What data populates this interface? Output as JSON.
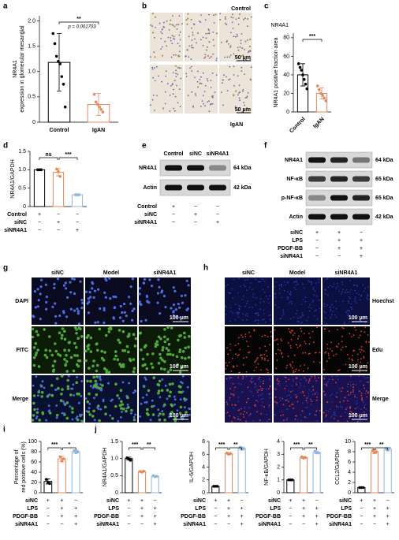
{
  "letters": [
    "a",
    "b",
    "c",
    "d",
    "e",
    "f",
    "g",
    "h",
    "i",
    "j"
  ],
  "chart_data": [
    {
      "type": "bar",
      "ylabel": [
        "NR4A1",
        "expression in glomerular mesangial"
      ],
      "categories": [
        "Control",
        "IgAN"
      ],
      "values": [
        1.18,
        0.35
      ],
      "errors": [
        0.57,
        0.22
      ],
      "points": [
        [
          1.75,
          1.55,
          1.3,
          1.2,
          1.15,
          0.9,
          0.75,
          0.3
        ],
        [
          0.55,
          0.4,
          0.35,
          0.3,
          0.25,
          0.2
        ]
      ],
      "colors": [
        "#000000",
        "#e8875a"
      ],
      "ylim": [
        0,
        2.1
      ],
      "yticks": [
        0,
        0.5,
        {
          "value": 1,
          "label": "1.0"
        },
        1.5,
        {
          "value": 2,
          "label": "2.0"
        }
      ],
      "annotations": [
        "**",
        "p = 0.001703"
      ]
    },
    {
      "type": "bar",
      "subtitle": "NR4A1",
      "ylabel": [
        "NR4A1 positive fraction area"
      ],
      "categories": [
        "Control",
        "IgAN"
      ],
      "values": [
        40,
        20
      ],
      "errors": [
        12,
        6
      ],
      "points": [
        [
          52,
          48,
          45,
          40,
          35,
          30,
          25
        ],
        [
          28,
          24,
          20,
          18,
          15,
          12
        ]
      ],
      "colors": [
        "#000000",
        "#e8875a"
      ],
      "ylim": [
        0,
        85
      ],
      "yticks": [
        0,
        20,
        40,
        60,
        80
      ],
      "annotations": [
        "***"
      ]
    },
    {
      "type": "bar",
      "ylabel": [
        "NR4A1/GAPDH"
      ],
      "values": [
        1.0,
        0.93,
        0.32
      ],
      "errors": [
        0.01,
        0.1,
        0.01
      ],
      "points": [
        [
          1,
          1,
          1
        ],
        [
          1.02,
          0.95,
          0.82
        ],
        [
          0.32,
          0.32,
          0.32
        ]
      ],
      "colors": [
        "#000000",
        "#e8875a",
        "#8fb5dc"
      ],
      "ylim": [
        0,
        1.5
      ],
      "yticks": [
        0,
        0.5,
        {
          "value": 1,
          "label": "1.0"
        },
        1.5
      ],
      "annotations": [
        "ns",
        "***"
      ],
      "conditions": {
        "labels": [
          "Control",
          "siNC",
          "siNR4A1"
        ],
        "signs": [
          [
            "+",
            "−",
            "−"
          ],
          [
            "−",
            "+",
            "−"
          ],
          [
            "−",
            "−",
            "+"
          ]
        ]
      }
    },
    {
      "type": "bar",
      "ylabel": [
        "Percentage of",
        "red positive cells (%)"
      ],
      "values": [
        22,
        66,
        80
      ],
      "errors": [
        5,
        5,
        3
      ],
      "points": [
        [
          26,
          20,
          18
        ],
        [
          70,
          62,
          66
        ],
        [
          82,
          78,
          80
        ]
      ],
      "colors": [
        "#000000",
        "#e8875a",
        "#8fb5dc"
      ],
      "ylim": [
        0,
        100
      ],
      "yticks": [
        0,
        20,
        40,
        60,
        80,
        100
      ],
      "annotations": [
        "***",
        "*"
      ],
      "conditions": {
        "labels": [
          "siNC",
          "LPS",
          "PDGF-BB",
          "siNR4A1"
        ],
        "signs": [
          [
            "+",
            "+",
            "−"
          ],
          [
            "−",
            "+",
            "+"
          ],
          [
            "−",
            "+",
            "+"
          ],
          [
            "−",
            "−",
            "+"
          ]
        ]
      }
    },
    {
      "type": "bar",
      "ylabel": [
        "NR4A1/GAPDH"
      ],
      "values": [
        1.0,
        0.62,
        0.48
      ],
      "errors": [
        0.04,
        0.02,
        0.02
      ],
      "points": [
        [
          1.02,
          0.98,
          0.95
        ],
        [
          0.62,
          0.6,
          0.63
        ],
        [
          0.5,
          0.47,
          0.48
        ]
      ],
      "colors": [
        "#000000",
        "#e8875a",
        "#8fb5dc"
      ],
      "ylim": [
        0,
        1.5
      ],
      "yticks": [
        0,
        0.5,
        {
          "value": 1,
          "label": "1.0"
        },
        1.5
      ],
      "annotations": [
        "***",
        "**"
      ],
      "conditions": {
        "labels": [
          "siNC",
          "LPS",
          "PDGF-BB",
          "siNR4A1"
        ],
        "signs": [
          [
            "+",
            "+",
            "−"
          ],
          [
            "−",
            "+",
            "+"
          ],
          [
            "−",
            "+",
            "+"
          ],
          [
            "−",
            "−",
            "+"
          ]
        ]
      }
    },
    {
      "type": "bar",
      "ylabel": [
        "IL-6/GAPDH"
      ],
      "values": [
        1.0,
        6.1,
        6.9
      ],
      "errors": [
        0.05,
        0.15,
        0.25
      ],
      "points": [
        [
          1,
          1,
          1
        ],
        [
          6.2,
          6.0,
          6.1
        ],
        [
          7.1,
          6.8,
          6.9
        ]
      ],
      "colors": [
        "#000000",
        "#e8875a",
        "#8fb5dc"
      ],
      "ylim": [
        0,
        8
      ],
      "yticks": [
        0,
        2,
        4,
        6,
        8
      ],
      "annotations": [
        "***",
        "**"
      ],
      "conditions": {
        "labels": [
          "siNC",
          "LPS",
          "PDGF-BB",
          "siNR4A1"
        ],
        "signs": [
          [
            "+",
            "+",
            "−"
          ],
          [
            "−",
            "+",
            "+"
          ],
          [
            "−",
            "+",
            "+"
          ],
          [
            "−",
            "−",
            "+"
          ]
        ]
      }
    },
    {
      "type": "bar",
      "ylabel": [
        "NF-κB/GAPDH"
      ],
      "values": [
        1.0,
        2.75,
        3.15
      ],
      "errors": [
        0.03,
        0.07,
        0.1
      ],
      "points": [
        [
          1,
          1,
          1
        ],
        [
          2.8,
          2.7,
          2.75
        ],
        [
          3.25,
          3.1,
          3.1
        ]
      ],
      "colors": [
        "#000000",
        "#e8875a",
        "#8fb5dc"
      ],
      "ylim": [
        0,
        4
      ],
      "yticks": [
        0,
        1,
        2,
        3,
        4
      ],
      "annotations": [
        "***",
        "**"
      ],
      "conditions": {
        "labels": [
          "siNC",
          "LPS",
          "PDGF-BB",
          "siNR4A1"
        ],
        "signs": [
          [
            "+",
            "+",
            "−"
          ],
          [
            "−",
            "+",
            "+"
          ],
          [
            "−",
            "+",
            "+"
          ],
          [
            "−",
            "−",
            "+"
          ]
        ]
      }
    },
    {
      "type": "bar",
      "ylabel": [
        "CCL2/GAPDH"
      ],
      "values": [
        1.0,
        8.0,
        8.5
      ],
      "errors": [
        0.05,
        0.35,
        0.3
      ],
      "points": [
        [
          1,
          1,
          1
        ],
        [
          8.3,
          7.8,
          8.0
        ],
        [
          8.6,
          8.3,
          8.7
        ]
      ],
      "colors": [
        "#000000",
        "#e8875a",
        "#8fb5dc"
      ],
      "ylim": [
        0,
        10
      ],
      "yticks": [
        0,
        2,
        4,
        6,
        8,
        10
      ],
      "annotations": [
        "***",
        "**"
      ],
      "conditions": {
        "labels": [
          "siNC",
          "LPS",
          "PDGF-BB",
          "siNR4A1"
        ],
        "signs": [
          [
            "+",
            "+",
            "−"
          ],
          [
            "−",
            "+",
            "+"
          ],
          [
            "−",
            "+",
            "+"
          ],
          [
            "−",
            "−",
            "+"
          ]
        ]
      }
    }
  ],
  "histology_b": {
    "top": "Control",
    "bottom": "IgAN",
    "scale": [
      "50 μm",
      "50 μm"
    ]
  },
  "blot_e": {
    "columns": [
      "Control",
      "siNC",
      "siNR4A1"
    ],
    "rows": [
      {
        "name": "NR4A1",
        "size": "64 kDa"
      },
      {
        "name": "Actin",
        "size": "42 kDa"
      }
    ],
    "conditions": {
      "labels": [
        "Control",
        "siNC",
        "siNR4A1"
      ],
      "signs": [
        [
          "+",
          "−",
          "−"
        ],
        [
          "−",
          "+",
          "−"
        ],
        [
          "−",
          "−",
          "+"
        ]
      ]
    }
  },
  "blot_f": {
    "rows": [
      {
        "name": "NR4A1",
        "size": "64 kDa"
      },
      {
        "name": "NF-κB",
        "size": "65 kDa"
      },
      {
        "name": "p-NF-κB",
        "size": "65 kDa"
      },
      {
        "name": "Actin",
        "size": "42 kDa"
      }
    ],
    "conditions": {
      "labels": [
        "siNC",
        "LPS",
        "PDGF-BB",
        "siNR4A1"
      ],
      "signs": [
        [
          "+",
          "+",
          "−"
        ],
        [
          "−",
          "+",
          "+"
        ],
        [
          "−",
          "+",
          "+"
        ],
        [
          "−",
          "−",
          "+"
        ]
      ]
    }
  },
  "if_g": {
    "columns": [
      "siNC",
      "Model",
      "siNR4A1"
    ],
    "rows": [
      "DAPI",
      "FITC",
      "Merge"
    ],
    "scale": "100 μm"
  },
  "edu_h": {
    "columns": [
      "siNC",
      "Model",
      "siNR4A1"
    ],
    "rows": [
      "Hoechst",
      "Edu",
      "Merge"
    ],
    "scale": "100 μm"
  }
}
